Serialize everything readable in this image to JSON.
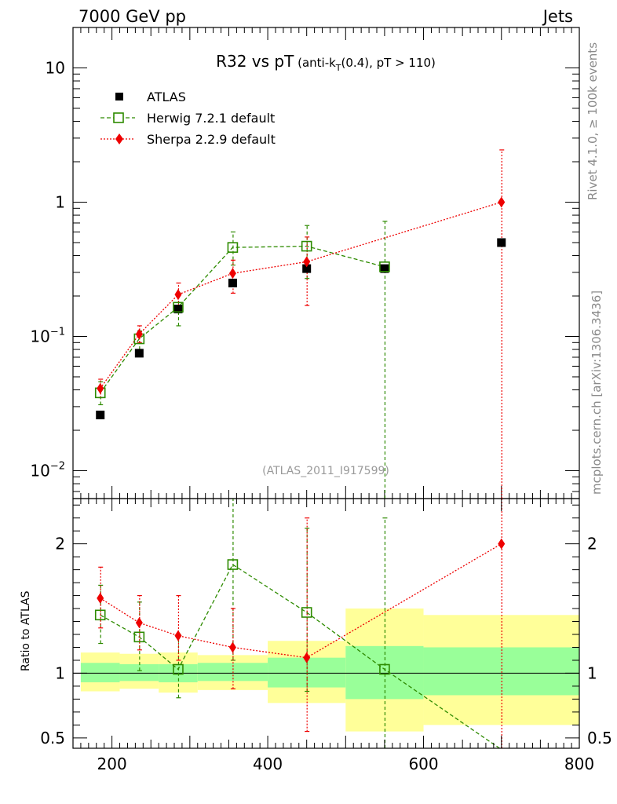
{
  "header": {
    "left": "7000 GeV pp",
    "right": "Jets",
    "side_top": "Rivet 4.1.0, ≥ 100k events",
    "side_bottom": "mcplots.cern.ch [arXiv:1306.3436]"
  },
  "plot": {
    "title_main": "R32 vs pT",
    "title_paren_open": " (anti-k",
    "title_sub": "T",
    "title_rest": "(0.4), pT > 110)",
    "watermark": "(ATLAS_2011_I917599)",
    "ratio_ylabel": "Ratio to ATLAS"
  },
  "legend": [
    {
      "name": "ATLAS",
      "color": "#000000",
      "marker": "square-filled"
    },
    {
      "name": "Herwig 7.2.1 default",
      "color": "#2e8b00",
      "marker": "square-open"
    },
    {
      "name": "Sherpa 2.2.9 default",
      "color": "#ee0000",
      "marker": "diamond"
    }
  ],
  "chart_data": {
    "type": "scatter",
    "xscale": "linear",
    "yscale": "log",
    "xlim": [
      150,
      800
    ],
    "ylim": [
      0.0062,
      20
    ],
    "xticks": [
      200,
      400,
      600,
      800
    ],
    "ytick_labels": [
      {
        "value": 10,
        "label": "10"
      },
      {
        "value": 1,
        "label": "1"
      },
      {
        "value": 0.1,
        "label": "10",
        "exp": "−1"
      },
      {
        "value": 0.01,
        "label": "10",
        "exp": "−2"
      }
    ],
    "bins": [
      [
        160,
        210
      ],
      [
        210,
        260
      ],
      [
        260,
        310
      ],
      [
        310,
        400
      ],
      [
        400,
        500
      ],
      [
        500,
        600
      ],
      [
        600,
        800
      ]
    ],
    "x": [
      185,
      235,
      285,
      355,
      450,
      550,
      700
    ],
    "series": [
      {
        "name": "ATLAS",
        "values": [
          0.026,
          0.075,
          0.16,
          0.25,
          0.32,
          0.32,
          0.5
        ]
      },
      {
        "name": "Herwig 7.2.1 default",
        "values": [
          0.038,
          0.096,
          0.165,
          0.46,
          0.47,
          0.33,
          null
        ],
        "err_lo": [
          0.031,
          0.08,
          0.12,
          0.34,
          0.27,
          0.0001,
          null
        ],
        "err_hi": [
          0.046,
          0.11,
          0.21,
          0.6,
          0.67,
          0.72,
          null
        ]
      },
      {
        "name": "Sherpa 2.2.9 default",
        "values": [
          0.041,
          0.104,
          0.205,
          0.295,
          0.36,
          null,
          1.0
        ],
        "err_lo": [
          0.035,
          0.09,
          0.17,
          0.21,
          0.17,
          null,
          0.0001
        ],
        "err_hi": [
          0.048,
          0.12,
          0.25,
          0.37,
          0.55,
          null,
          2.45
        ]
      }
    ],
    "ratio": {
      "ylim": [
        0.42,
        2.35
      ],
      "yticks": [
        0.5,
        1,
        2
      ],
      "band_inner": [
        [
          0.93,
          1.08
        ],
        [
          0.94,
          1.07
        ],
        [
          0.93,
          1.07
        ],
        [
          0.94,
          1.08
        ],
        [
          0.89,
          1.12
        ],
        [
          0.8,
          1.21
        ],
        [
          0.83,
          1.2
        ]
      ],
      "band_outer": [
        [
          0.86,
          1.16
        ],
        [
          0.88,
          1.15
        ],
        [
          0.85,
          1.16
        ],
        [
          0.87,
          1.14
        ],
        [
          0.77,
          1.25
        ],
        [
          0.55,
          1.5
        ],
        [
          0.6,
          1.45
        ]
      ],
      "herwig": [
        1.45,
        1.28,
        1.03,
        1.84,
        1.47,
        1.03,
        0.41
      ],
      "herwig_err_lo": [
        1.23,
        1.02,
        0.81,
        1.1,
        0.86,
        0.3,
        null
      ],
      "herwig_err_hi": [
        1.68,
        1.55,
        1.3,
        2.45,
        2.12,
        2.2,
        null
      ],
      "sherpa": [
        1.58,
        1.39,
        1.29,
        1.2,
        1.12,
        null,
        2.0
      ],
      "sherpa_err_lo": [
        1.35,
        1.18,
        1.1,
        0.88,
        0.55,
        null,
        0.3
      ],
      "sherpa_err_hi": [
        1.82,
        1.6,
        1.6,
        1.5,
        2.2,
        null,
        2.4
      ]
    }
  }
}
